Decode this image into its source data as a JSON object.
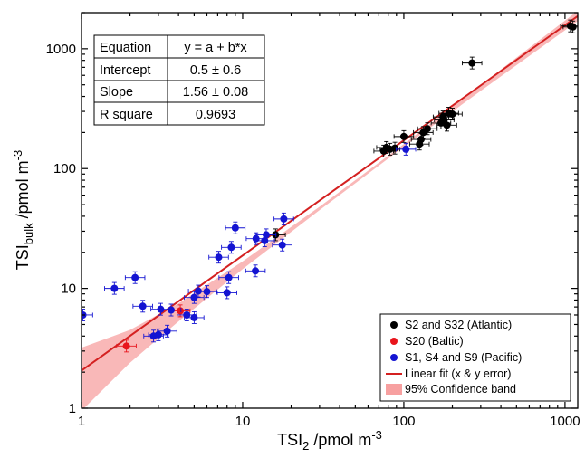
{
  "chart_data": {
    "type": "scatter",
    "xscale": "log",
    "yscale": "log",
    "xlim": [
      1,
      1200
    ],
    "ylim": [
      1,
      2000
    ],
    "x_ticks": [
      1,
      10,
      100,
      1000
    ],
    "y_ticks": [
      1,
      10,
      100,
      1000
    ],
    "x_tick_labels": [
      "1",
      "10",
      "100",
      "1000"
    ],
    "y_tick_labels": [
      "1",
      "10",
      "100",
      "1000"
    ],
    "xlabel": {
      "main": "TSI",
      "sub": "2",
      "unit": " /pmol m",
      "sup": "-3"
    },
    "ylabel": {
      "main": "TSI",
      "sub": "bulk",
      "unit": " /pmol m",
      "sup": "-3"
    },
    "stats_table": [
      {
        "label": "Equation",
        "value": "y = a + b*x"
      },
      {
        "label": "Intercept",
        "value": "0.5 ± 0.6"
      },
      {
        "label": "Slope",
        "value": "1.56 ± 0.08"
      },
      {
        "label": "R square",
        "value": "0.9693"
      }
    ],
    "series": [
      {
        "name": "S2 and S32 (Atlantic)",
        "color": "#000000",
        "points": [
          {
            "x": 16,
            "y": 28
          },
          {
            "x": 75,
            "y": 140
          },
          {
            "x": 78,
            "y": 150
          },
          {
            "x": 82,
            "y": 145
          },
          {
            "x": 88,
            "y": 148
          },
          {
            "x": 100,
            "y": 185
          },
          {
            "x": 125,
            "y": 160
          },
          {
            "x": 128,
            "y": 175
          },
          {
            "x": 132,
            "y": 200
          },
          {
            "x": 140,
            "y": 215
          },
          {
            "x": 170,
            "y": 240
          },
          {
            "x": 175,
            "y": 270
          },
          {
            "x": 178,
            "y": 255
          },
          {
            "x": 185,
            "y": 230
          },
          {
            "x": 190,
            "y": 290
          },
          {
            "x": 200,
            "y": 285
          },
          {
            "x": 265,
            "y": 760
          },
          {
            "x": 1080,
            "y": 1550
          },
          {
            "x": 1120,
            "y": 1520
          }
        ]
      },
      {
        "name": "S20 (Baltic)",
        "color": "#e8141c",
        "points": [
          {
            "x": 1.9,
            "y": 3.3
          },
          {
            "x": 4.1,
            "y": 6.5
          }
        ]
      },
      {
        "name": "S1, S4 and S9 (Pacific)",
        "color": "#1414d2",
        "points": [
          {
            "x": 1.02,
            "y": 6.0
          },
          {
            "x": 1.6,
            "y": 10.0
          },
          {
            "x": 2.15,
            "y": 12.3
          },
          {
            "x": 2.4,
            "y": 7.1
          },
          {
            "x": 2.8,
            "y": 4.0
          },
          {
            "x": 3.0,
            "y": 4.1
          },
          {
            "x": 3.1,
            "y": 6.7
          },
          {
            "x": 3.4,
            "y": 4.4
          },
          {
            "x": 3.6,
            "y": 6.6
          },
          {
            "x": 4.5,
            "y": 6.0
          },
          {
            "x": 5.0,
            "y": 8.4
          },
          {
            "x": 5.0,
            "y": 5.7
          },
          {
            "x": 5.3,
            "y": 9.5
          },
          {
            "x": 6.0,
            "y": 9.4
          },
          {
            "x": 7.1,
            "y": 18.2
          },
          {
            "x": 8.0,
            "y": 9.2
          },
          {
            "x": 8.2,
            "y": 12.3
          },
          {
            "x": 8.5,
            "y": 22
          },
          {
            "x": 9.0,
            "y": 32
          },
          {
            "x": 12,
            "y": 14
          },
          {
            "x": 12.1,
            "y": 26
          },
          {
            "x": 13.7,
            "y": 25
          },
          {
            "x": 14,
            "y": 28
          },
          {
            "x": 17.6,
            "y": 23
          },
          {
            "x": 18,
            "y": 38
          },
          {
            "x": 103,
            "y": 145
          }
        ]
      }
    ],
    "fit": {
      "name": "Linear fit (x & y error)",
      "color": "#d42020",
      "x": [
        1,
        1200
      ],
      "y": [
        2.06,
        1873
      ],
      "intercept": 0.5,
      "slope": 1.56
    },
    "band": {
      "name": "95% Confidence band",
      "color": "#f7a0a0",
      "x": [
        1,
        2,
        4,
        10,
        30,
        100,
        300,
        1200
      ],
      "lower": [
        0.95,
        2.4,
        5.3,
        14.5,
        45,
        152,
        445,
        1700
      ],
      "upper": [
        3.2,
        4.5,
        7.5,
        16.8,
        48,
        160,
        500,
        2070
      ]
    },
    "legend_position": "bottom-right",
    "grid": false
  }
}
